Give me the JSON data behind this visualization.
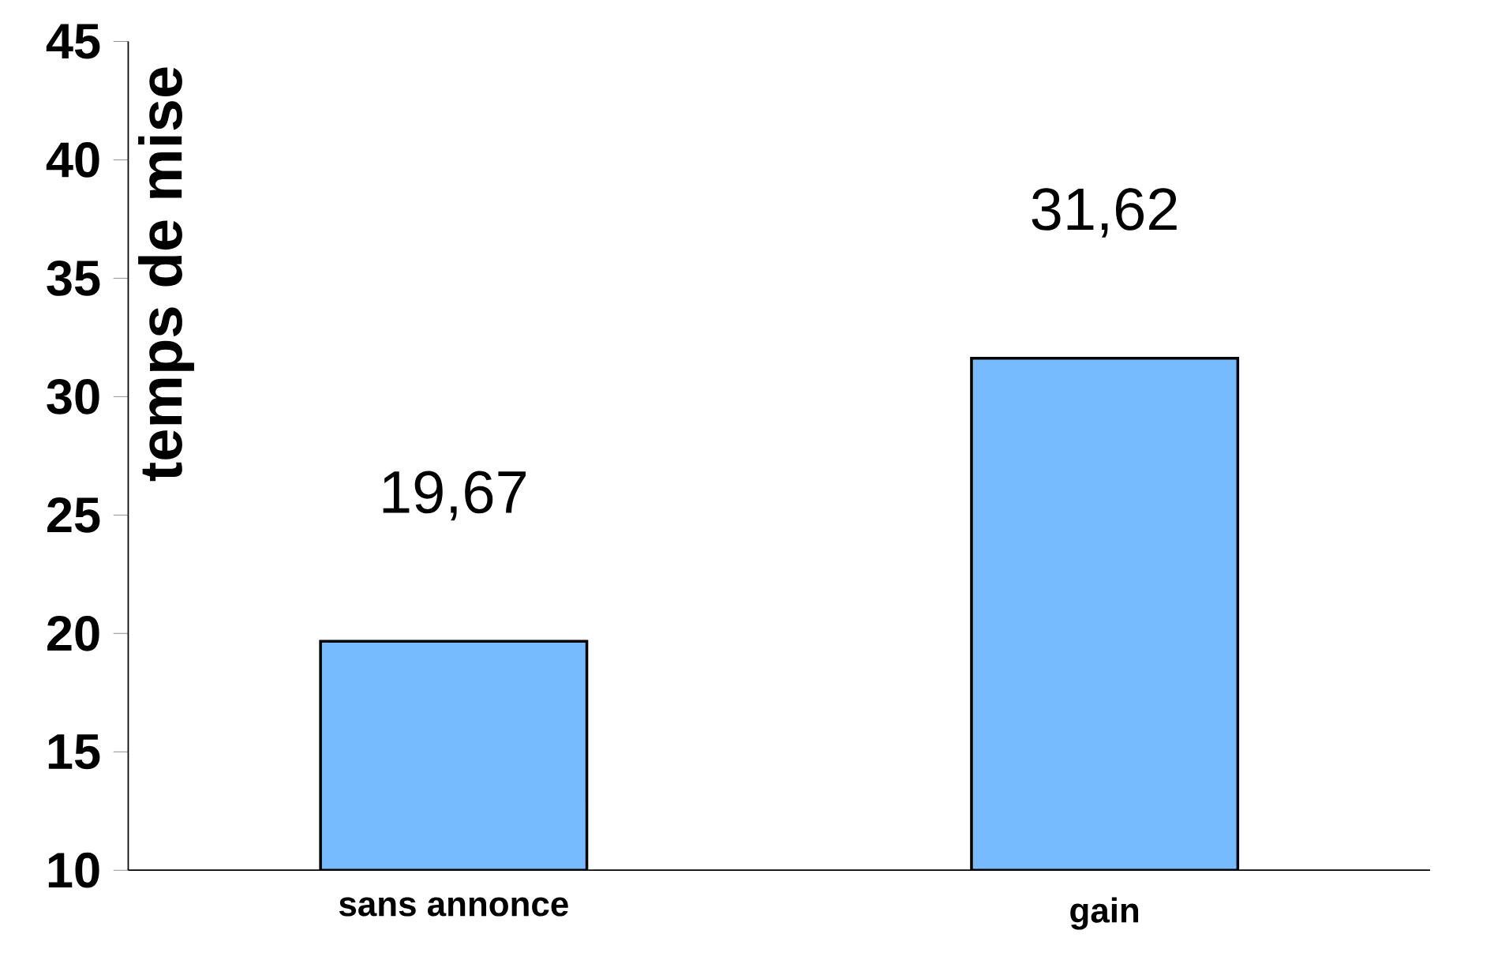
{
  "chart_data": {
    "type": "bar",
    "ylabel": "temps de mise",
    "categories": [
      "sans annonce",
      "gain"
    ],
    "values": [
      19.67,
      31.62
    ],
    "value_labels": [
      "19,67",
      "31,62"
    ],
    "color": "#77bbff",
    "ylim": [
      10,
      45
    ],
    "yticks": [
      10,
      15,
      20,
      25,
      30,
      35,
      40,
      45
    ],
    "grid": false
  }
}
